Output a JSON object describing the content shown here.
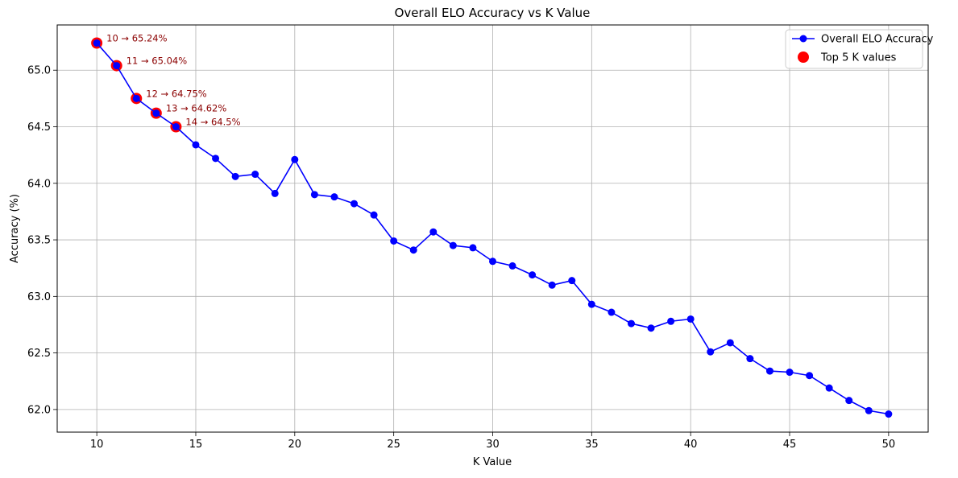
{
  "chart_data": {
    "type": "line",
    "title": "Overall ELO Accuracy vs K Value",
    "xlabel": "K Value",
    "ylabel": "Accuracy (%)",
    "xlim": [
      8,
      52
    ],
    "ylim": [
      61.8,
      65.4
    ],
    "x_ticks": [
      10,
      15,
      20,
      25,
      30,
      35,
      40,
      45,
      50
    ],
    "y_ticks": [
      62.0,
      62.5,
      63.0,
      63.5,
      64.0,
      64.5,
      65.0
    ],
    "grid": true,
    "legend_position": "top-right",
    "series": [
      {
        "name": "Overall ELO Accuracy",
        "color": "#0000ff",
        "marker": "circle",
        "x": [
          10,
          11,
          12,
          13,
          14,
          15,
          16,
          17,
          18,
          19,
          20,
          21,
          22,
          23,
          24,
          25,
          26,
          27,
          28,
          29,
          30,
          31,
          32,
          33,
          34,
          35,
          36,
          37,
          38,
          39,
          40,
          41,
          42,
          43,
          44,
          45,
          46,
          47,
          48,
          49,
          50
        ],
        "y": [
          65.24,
          65.04,
          64.75,
          64.62,
          64.5,
          64.34,
          64.22,
          64.06,
          64.08,
          63.91,
          64.21,
          63.9,
          63.88,
          63.82,
          63.72,
          63.49,
          63.41,
          63.57,
          63.45,
          63.43,
          63.31,
          63.27,
          63.19,
          63.1,
          63.14,
          62.93,
          62.86,
          62.76,
          62.72,
          62.78,
          62.8,
          62.51,
          62.59,
          62.45,
          62.34,
          62.33,
          62.3,
          62.19,
          62.08,
          61.99,
          61.96
        ]
      }
    ],
    "highlight": {
      "name": "Top 5 K values",
      "color": "#ff0000",
      "x": [
        10,
        11,
        12,
        13,
        14
      ],
      "y": [
        65.24,
        65.04,
        64.75,
        64.62,
        64.5
      ]
    },
    "annotations": [
      {
        "x": 10,
        "y": 65.24,
        "text": "10 → 65.24%"
      },
      {
        "x": 11,
        "y": 65.04,
        "text": "11 → 65.04%"
      },
      {
        "x": 12,
        "y": 64.75,
        "text": "12 → 64.75%"
      },
      {
        "x": 13,
        "y": 64.62,
        "text": "13 → 64.62%"
      },
      {
        "x": 14,
        "y": 64.5,
        "text": "14 → 64.5%"
      }
    ],
    "annotation_color": "#8b0000"
  }
}
